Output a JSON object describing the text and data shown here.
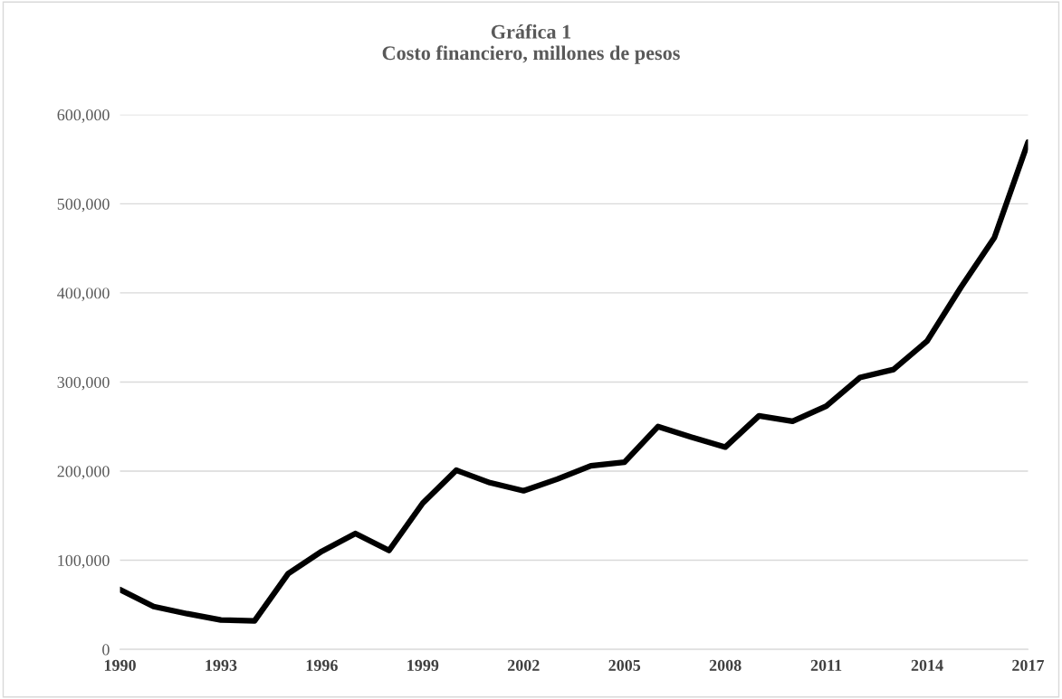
{
  "chart_data": {
    "type": "line",
    "title": "Gráfica 1\nCosto financiero, millones de pesos",
    "x": [
      1990,
      1991,
      1992,
      1993,
      1994,
      1995,
      1996,
      1997,
      1998,
      1999,
      2000,
      2001,
      2002,
      2003,
      2004,
      2005,
      2006,
      2007,
      2008,
      2009,
      2010,
      2011,
      2012,
      2013,
      2014,
      2015,
      2016,
      2017
    ],
    "series": [
      {
        "color": "#000000",
        "values": [
          67000,
          48000,
          40000,
          33000,
          32000,
          85000,
          110000,
          130000,
          111000,
          164000,
          201000,
          187000,
          178000,
          191000,
          206000,
          210000,
          250000,
          238000,
          227000,
          262000,
          256000,
          273000,
          305000,
          314000,
          346000,
          406000,
          462000,
          569000
        ]
      }
    ],
    "xlim": [
      1990,
      2017
    ],
    "xticks": [
      1990,
      1993,
      1996,
      1999,
      2002,
      2005,
      2008,
      2011,
      2014,
      2017
    ],
    "ylim": [
      0,
      600000
    ],
    "yticks": [
      {
        "value": 0,
        "label": "0"
      },
      {
        "value": 100000,
        "label": "100,000"
      },
      {
        "value": 200000,
        "label": "200,000"
      },
      {
        "value": 300000,
        "label": "300,000"
      },
      {
        "value": 400000,
        "label": "400,000"
      },
      {
        "value": 500000,
        "label": "500,000"
      },
      {
        "value": 600000,
        "label": "600,000"
      }
    ],
    "grid": "y",
    "marker": "none",
    "line_style": "solid"
  }
}
